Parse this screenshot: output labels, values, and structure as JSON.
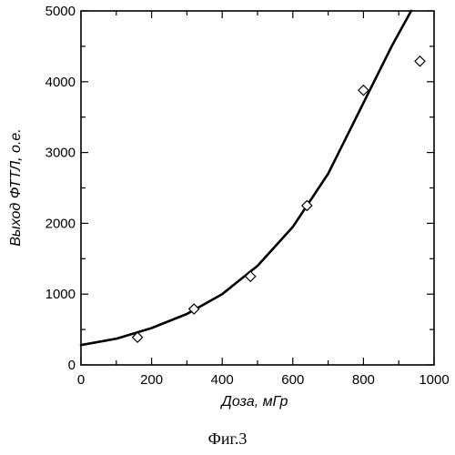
{
  "chart_data": {
    "type": "scatter",
    "title": "",
    "xlabel": "Доза, мГр",
    "ylabel": "Выход ФТТЛ, о.е.",
    "xlim": [
      0,
      1000
    ],
    "ylim": [
      0,
      5000
    ],
    "xticks": [
      0,
      200,
      400,
      600,
      800,
      1000
    ],
    "yticks": [
      0,
      1000,
      2000,
      3000,
      4000,
      5000
    ],
    "grid": false,
    "series": [
      {
        "marker": "diamond-open",
        "x": [
          160,
          320,
          480,
          640,
          800,
          960
        ],
        "y": [
          390,
          790,
          1250,
          2250,
          3880,
          4290
        ]
      }
    ],
    "fit_curve": {
      "x": [
        0,
        100,
        200,
        300,
        400,
        500,
        600,
        700,
        800,
        880,
        935
      ],
      "y": [
        280,
        370,
        520,
        720,
        1000,
        1400,
        1950,
        2700,
        3700,
        4500,
        5000
      ]
    }
  },
  "caption": "Фиг.3"
}
